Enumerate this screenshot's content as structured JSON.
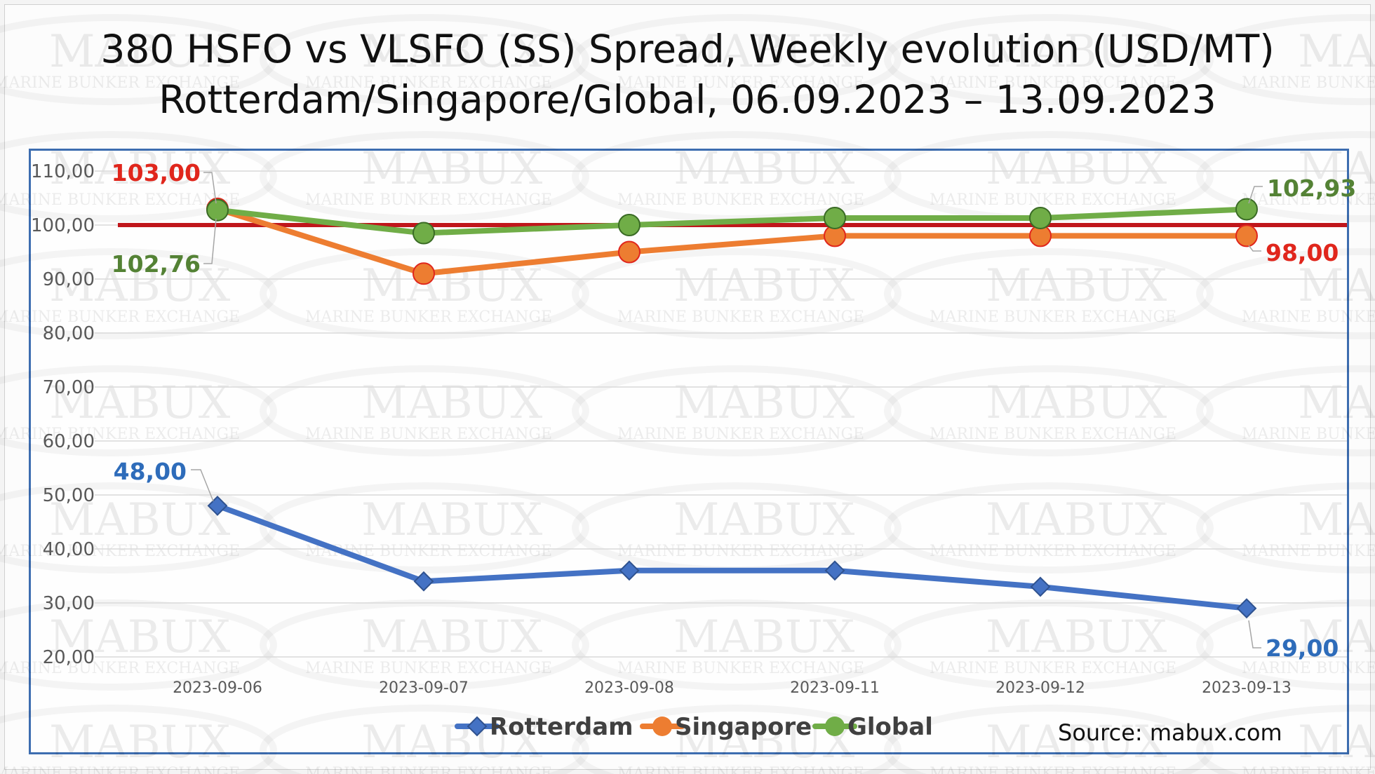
{
  "title_line1": "380 HSFO vs VLSFO (SS) Spread, Weekly evolution (USD/MT)",
  "title_line2": "Rotterdam/Singapore/Global, 06.09.2023 – 13.09.2023",
  "source": "Source: mabux.com",
  "watermark": {
    "brand": "MABUX",
    "tagline": "MARINE BUNKER EXCHANGE"
  },
  "chart_data": {
    "type": "line",
    "categories": [
      "2023-09-06",
      "2023-09-07",
      "2023-09-08",
      "2023-09-11",
      "2023-09-12",
      "2023-09-13"
    ],
    "ylim": [
      20,
      110
    ],
    "yticks": [
      20,
      30,
      40,
      50,
      60,
      70,
      80,
      90,
      100,
      110
    ],
    "ytick_labels": [
      "20,00",
      "30,00",
      "40,00",
      "50,00",
      "60,00",
      "70,00",
      "80,00",
      "90,00",
      "100,00",
      "110,00"
    ],
    "grid": true,
    "legend_position": "bottom",
    "reference_line": {
      "value": 100,
      "color": "#c0161b"
    },
    "series": [
      {
        "name": "Rotterdam",
        "color": "#4472c4",
        "marker": "diamond",
        "values": [
          48.0,
          34.0,
          36.0,
          36.0,
          33.0,
          29.0
        ],
        "start_label": "48,00",
        "end_label": "29,00",
        "label_color": "#2e6cba"
      },
      {
        "name": "Singapore",
        "color": "#ed7d31",
        "marker": "circle",
        "values": [
          103.0,
          91.0,
          95.0,
          98.0,
          98.0,
          98.0
        ],
        "start_label": "103,00",
        "end_label": "98,00",
        "label_color": "#e0261c"
      },
      {
        "name": "Global",
        "color": "#70ad47",
        "marker": "circle",
        "values": [
          102.76,
          98.5,
          100.0,
          101.3,
          101.3,
          102.93
        ],
        "start_label": "102,76",
        "end_label": "102,93",
        "label_color": "#548235"
      }
    ]
  }
}
